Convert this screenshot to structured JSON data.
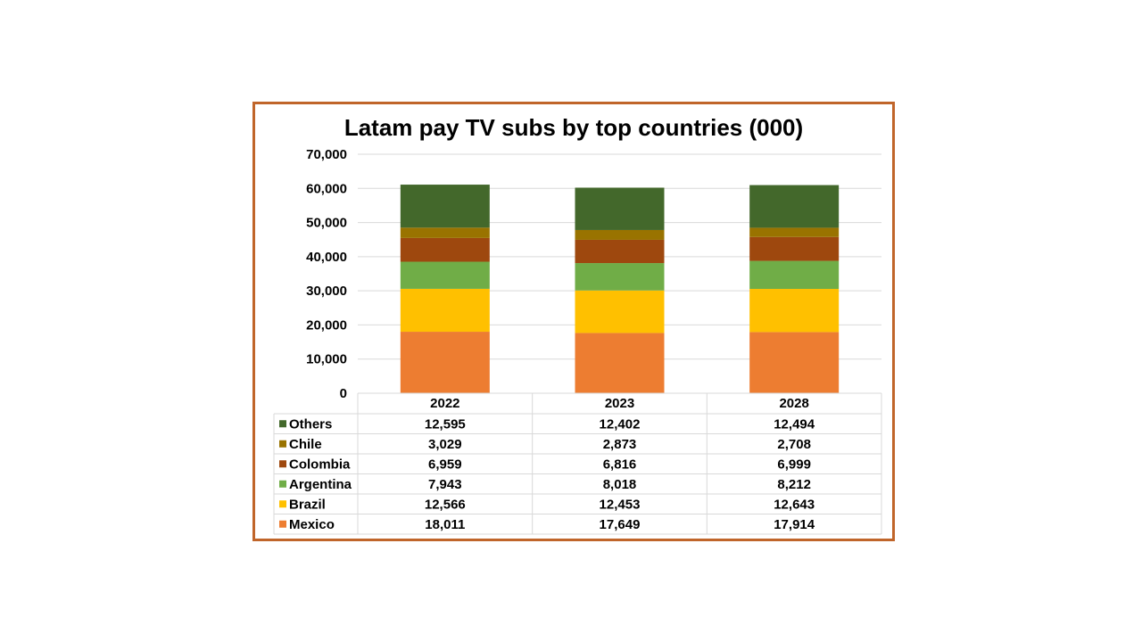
{
  "chart_data": {
    "type": "bar",
    "stacked": true,
    "title": "Latam pay TV subs by top countries (000)",
    "xlabel": "",
    "ylabel": "",
    "categories": [
      "2022",
      "2023",
      "2028"
    ],
    "ylim": [
      0,
      70000
    ],
    "yticks": [
      0,
      10000,
      20000,
      30000,
      40000,
      50000,
      60000,
      70000
    ],
    "ytick_labels": [
      "0",
      "10,000",
      "20,000",
      "30,000",
      "40,000",
      "50,000",
      "60,000",
      "70,000"
    ],
    "grid": true,
    "legend": "data-table-left",
    "series": [
      {
        "name": "Mexico",
        "color": "#ed7d31",
        "values": [
          18011,
          17649,
          17914
        ],
        "labels": [
          "18,011",
          "17,649",
          "17,914"
        ]
      },
      {
        "name": "Brazil",
        "color": "#ffc000",
        "values": [
          12566,
          12453,
          12643
        ],
        "labels": [
          "12,566",
          "12,453",
          "12,643"
        ]
      },
      {
        "name": "Argentina",
        "color": "#70ad47",
        "values": [
          7943,
          8018,
          8212
        ],
        "labels": [
          "7,943",
          "8,018",
          "8,212"
        ]
      },
      {
        "name": "Colombia",
        "color": "#9e480e",
        "values": [
          6959,
          6816,
          6999
        ],
        "labels": [
          "6,959",
          "6,816",
          "6,999"
        ]
      },
      {
        "name": "Chile",
        "color": "#997300",
        "values": [
          3029,
          2873,
          2708
        ],
        "labels": [
          "3,029",
          "2,873",
          "2,708"
        ]
      },
      {
        "name": "Others",
        "color": "#43682b",
        "values": [
          12595,
          12402,
          12494
        ],
        "labels": [
          "12,595",
          "12,402",
          "12,494"
        ]
      }
    ]
  }
}
